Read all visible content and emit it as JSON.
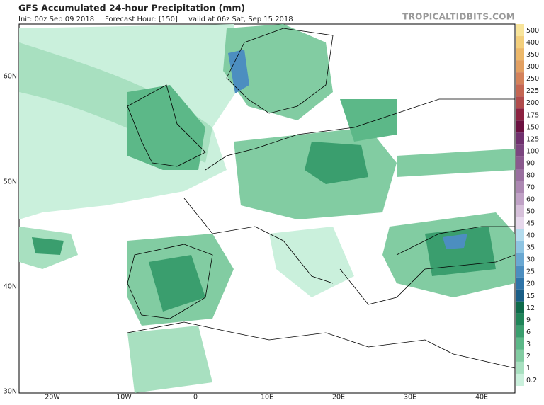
{
  "header": {
    "title": "GFS Accumulated 24-hour Precipitation (mm)",
    "init": "Init: 00z Sep 09 2018",
    "forecast_hour": "Forecast Hour: [150]",
    "valid": "valid at 06z Sat, Sep 15 2018",
    "watermark": "TROPICALTIDBITS.COM"
  },
  "map": {
    "lat_labels": [
      "60N",
      "50N",
      "40N",
      "30N"
    ],
    "lon_labels": [
      "20W",
      "10W",
      "0",
      "10E",
      "20E",
      "30E",
      "40E"
    ]
  },
  "colorbar": [
    {
      "value": 500,
      "color": "#f8e49a"
    },
    {
      "value": 400,
      "color": "#f3cf7c"
    },
    {
      "value": 350,
      "color": "#ecb86a"
    },
    {
      "value": 300,
      "color": "#e2a062"
    },
    {
      "value": 250,
      "color": "#d4825a"
    },
    {
      "value": 225,
      "color": "#c46652"
    },
    {
      "value": 200,
      "color": "#b04c4c"
    },
    {
      "value": 175,
      "color": "#8c2240"
    },
    {
      "value": 150,
      "color": "#6a1040"
    },
    {
      "value": 125,
      "color": "#70306e"
    },
    {
      "value": 100,
      "color": "#7c4680"
    },
    {
      "value": 90,
      "color": "#8a5a8e"
    },
    {
      "value": 80,
      "color": "#9a70a0"
    },
    {
      "value": 70,
      "color": "#ac88b2"
    },
    {
      "value": 60,
      "color": "#c0a2c6"
    },
    {
      "value": 50,
      "color": "#d6c0da"
    },
    {
      "value": 45,
      "color": "#e6d8ec"
    },
    {
      "value": 40,
      "color": "#b4dcee"
    },
    {
      "value": 35,
      "color": "#8ec4e2"
    },
    {
      "value": 30,
      "color": "#6aa8d2"
    },
    {
      "value": 25,
      "color": "#4c8ec0"
    },
    {
      "value": 20,
      "color": "#2f74a8"
    },
    {
      "value": 15,
      "color": "#1a5e86"
    },
    {
      "value": 12,
      "color": "#0e6a4a"
    },
    {
      "value": 9,
      "color": "#1f8458"
    },
    {
      "value": 6,
      "color": "#3a9e6e"
    },
    {
      "value": 3,
      "color": "#5cb888"
    },
    {
      "value": 2,
      "color": "#82cca2"
    },
    {
      "value": 1,
      "color": "#a8e0c0"
    },
    {
      "value": 0.2,
      "color": "#caf0dc"
    }
  ]
}
